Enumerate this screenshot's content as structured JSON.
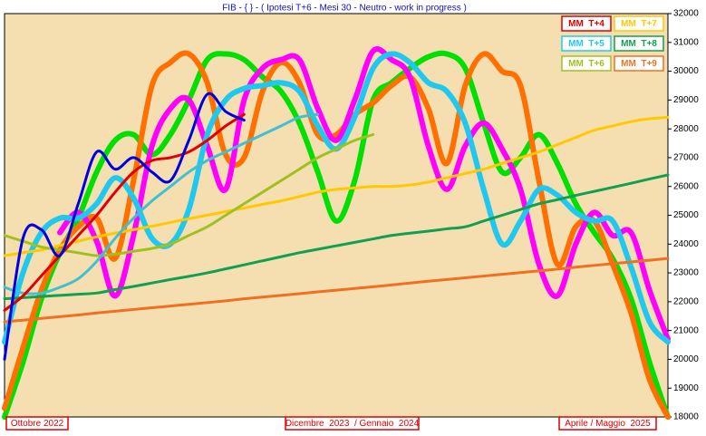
{
  "chart_data": {
    "type": "line",
    "title": "FIB  - { } - ( Ipotesi T+6  -  Mesi 30  -  Neutro -  work in progress )",
    "x_labels": [
      "Ottobre 2022",
      "Dicembre  2023  / Gennaio  2024",
      "Aprile / Maggio  2025"
    ],
    "x": [
      0,
      1,
      2,
      3,
      4,
      5,
      6,
      7,
      8,
      9,
      10,
      11,
      12,
      13,
      14,
      15,
      16,
      17,
      18,
      19,
      20,
      21,
      22,
      23,
      24,
      25,
      26,
      27,
      28,
      29,
      30,
      31,
      32,
      33,
      34,
      35,
      36
    ],
    "xlim": [
      0,
      36
    ],
    "ylim": [
      18000,
      32000
    ],
    "yticks": [
      18000,
      19000,
      20000,
      21000,
      22000,
      23000,
      24000,
      25000,
      26000,
      27000,
      28000,
      29000,
      30000,
      31000,
      32000
    ],
    "series": [
      {
        "color": "#00e000",
        "line_width": 6,
        "values": [
          18000,
          19900,
          22100,
          23700,
          24900,
          26500,
          27600,
          27800,
          27100,
          27800,
          29000,
          30400,
          30600,
          30400,
          29800,
          29300,
          28200,
          26500,
          24800,
          26200,
          29000,
          29600,
          30100,
          30500,
          30600,
          30100,
          28200,
          26500,
          27000,
          27800,
          26800,
          25400,
          24400,
          23500,
          22100,
          19900,
          18000
        ]
      },
      {
        "color": "#ff7000",
        "line_width": 6,
        "values": [
          18300,
          20400,
          22400,
          23800,
          24600,
          24900,
          23500,
          26200,
          29500,
          30300,
          30600,
          29600,
          27100,
          27000,
          29300,
          30300,
          29600,
          27800,
          27800,
          28500,
          28900,
          29500,
          29800,
          28700,
          26800,
          29500,
          30600,
          30000,
          29500,
          26200,
          23300,
          24600,
          24800,
          23300,
          21600,
          19300,
          18000
        ]
      },
      {
        "color": "#ff00ff",
        "line_width": 6,
        "values": [
          null,
          null,
          null,
          24400,
          25100,
          24100,
          22200,
          24300,
          27400,
          28700,
          29000,
          27400,
          25900,
          29000,
          30100,
          30400,
          30400,
          28700,
          27600,
          29000,
          30700,
          30400,
          29800,
          27400,
          25900,
          27400,
          28200,
          27300,
          25900,
          23300,
          22200,
          24000,
          25100,
          24300,
          24400,
          22400,
          20700
        ]
      },
      {
        "name": "MM  T+5",
        "color": "#20c8f0",
        "line_width": 6,
        "values": [
          20600,
          23000,
          24400,
          24900,
          24900,
          25400,
          26300,
          25600,
          24200,
          24000,
          25200,
          27800,
          29000,
          29400,
          29500,
          29600,
          29300,
          28100,
          27300,
          28400,
          30100,
          30600,
          30300,
          29600,
          29300,
          28200,
          25900,
          24000,
          24800,
          25900,
          25700,
          25100,
          24800,
          24800,
          23200,
          21300,
          20600
        ]
      },
      {
        "name": "MM  T+9",
        "color": "#f07020",
        "line_width": 3,
        "values": [
          21300,
          21360,
          21420,
          21480,
          21540,
          21610,
          21670,
          21730,
          21790,
          21850,
          21910,
          21970,
          22030,
          22100,
          22160,
          22220,
          22280,
          22340,
          22400,
          22460,
          22520,
          22580,
          22650,
          22710,
          22770,
          22830,
          22890,
          22950,
          23010,
          23070,
          23130,
          23200,
          23260,
          23320,
          23380,
          23440,
          23500
        ]
      },
      {
        "name": "MM  T+8",
        "color": "#10a050",
        "line_width": 3,
        "values": [
          22100,
          22140,
          22180,
          22220,
          22260,
          22300,
          22420,
          22530,
          22650,
          22770,
          22880,
          23000,
          23140,
          23280,
          23420,
          23560,
          23700,
          23820,
          23940,
          24060,
          24180,
          24300,
          24380,
          24450,
          24530,
          24600,
          24800,
          25000,
          25200,
          25400,
          25540,
          25690,
          25830,
          25970,
          26110,
          26260,
          26400
        ]
      },
      {
        "name": "MM  T+7",
        "color": "#ffc800",
        "line_width": 3,
        "values": [
          23600,
          23700,
          23800,
          23950,
          24100,
          24250,
          24380,
          24500,
          24620,
          24750,
          24880,
          25000,
          25130,
          25250,
          25380,
          25500,
          25650,
          25800,
          25900,
          25950,
          26000,
          26000,
          26050,
          26150,
          26300,
          26450,
          26600,
          26800,
          27000,
          27200,
          27450,
          27700,
          27950,
          28100,
          28250,
          28350,
          28400
        ]
      },
      {
        "name": "MM  T+6",
        "color": "#a0c020",
        "line_width": 3,
        "values": [
          24300,
          24100,
          23900,
          23800,
          23700,
          23600,
          23650,
          23750,
          23850,
          24000,
          24300,
          24600,
          25000,
          25400,
          25800,
          26200,
          26600,
          27000,
          27300,
          27600,
          27800,
          null,
          null,
          null,
          null,
          null,
          null,
          null,
          null,
          null,
          null,
          null,
          null,
          null,
          null,
          null,
          null
        ]
      },
      {
        "color": "#40c0d0",
        "line_width": 3,
        "values": [
          22500,
          22300,
          22300,
          22500,
          22800,
          23400,
          24200,
          24900,
          25500,
          26000,
          26500,
          26900,
          27200,
          27500,
          27800,
          28100,
          28400,
          28500,
          null,
          null,
          null,
          null,
          null,
          null,
          null,
          null,
          null,
          null,
          null,
          null,
          null,
          null,
          null,
          null,
          null,
          null,
          null
        ]
      },
      {
        "name": "MM  T+4",
        "color": "#e00000",
        "line_width": 3,
        "values": [
          21700,
          22200,
          22900,
          23600,
          24300,
          25000,
          25800,
          26500,
          26900,
          27000,
          27200,
          27600,
          28100,
          28500,
          null,
          null,
          null,
          null,
          null,
          null,
          null,
          null,
          null,
          null,
          null,
          null,
          null,
          null,
          null,
          null,
          null,
          null,
          null,
          null,
          null,
          null,
          null
        ]
      },
      {
        "color": "#0000e0",
        "line_width": 3,
        "values": [
          20000,
          24200,
          24500,
          23600,
          25400,
          27200,
          26600,
          27000,
          26500,
          26200,
          27600,
          29200,
          28600,
          28300,
          null,
          null,
          null,
          null,
          null,
          null,
          null,
          null,
          null,
          null,
          null,
          null,
          null,
          null,
          null,
          null,
          null,
          null,
          null,
          null,
          null,
          null,
          null
        ]
      }
    ]
  }
}
